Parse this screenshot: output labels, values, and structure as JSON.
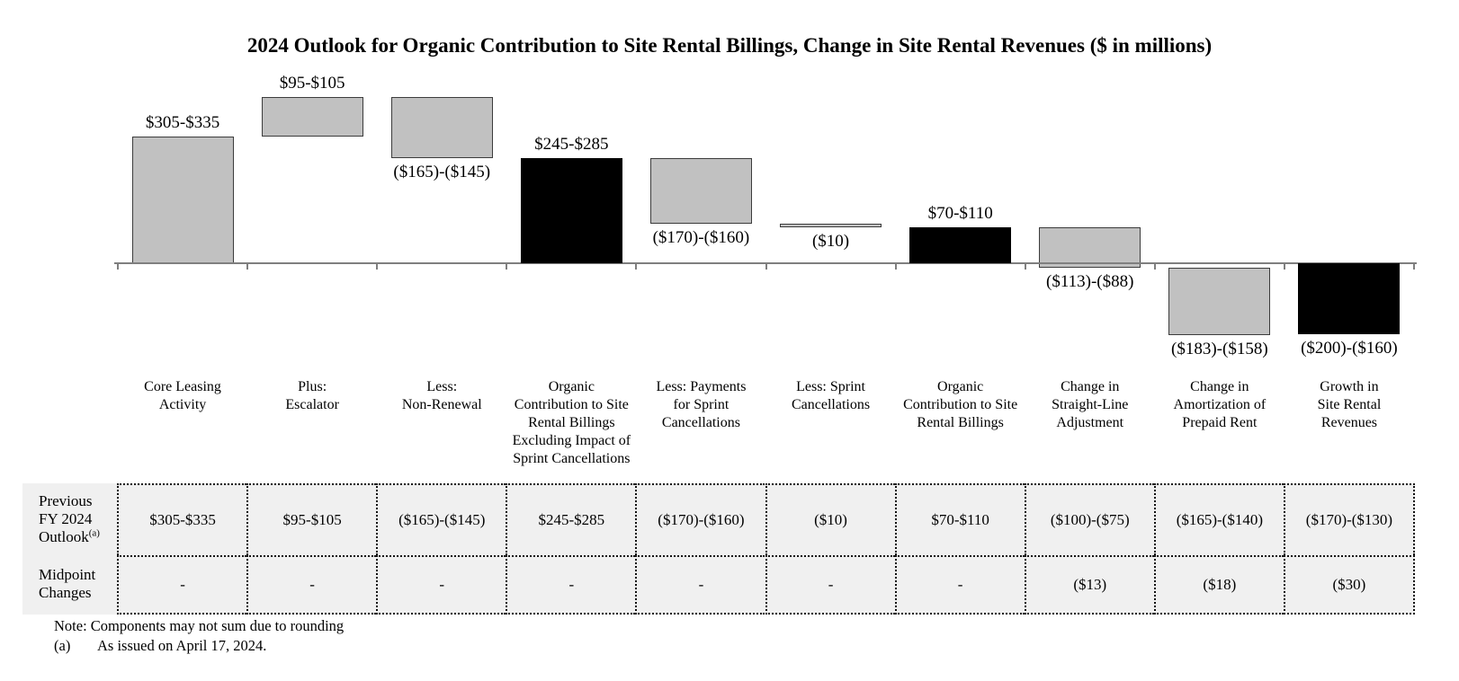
{
  "title": "2024 Outlook for Organic Contribution to Site Rental Billings, Change in Site Rental Revenues ($ in millions)",
  "chart_data": {
    "type": "bar",
    "subtype": "waterfall",
    "title": "2024 Outlook for Organic Contribution to Site Rental Billings, Change in Site Rental Revenues ($ in millions)",
    "unit": "$ in millions",
    "baseline": 0,
    "ylim": [
      -200,
      440
    ],
    "grid": false,
    "legend": "none",
    "categories": [
      "Core Leasing Activity",
      "Plus: Escalator",
      "Less: Non-Renewal",
      "Organic Contribution to Site Rental Billings Excluding Impact of Sprint Cancellations",
      "Less: Payments for Sprint Cancellations",
      "Less: Sprint Cancellations",
      "Organic Contribution to Site Rental Billings",
      "Change in Straight-Line Adjustment",
      "Change in Amortization of Prepaid Rent",
      "Growth in Site Rental Revenues"
    ],
    "bars": [
      {
        "label_lines": [
          "Core Leasing",
          "Activity"
        ],
        "value_label": "$305-$335",
        "range_low": 305,
        "range_high": 335,
        "start": 0,
        "end": 320,
        "color": "gray",
        "label_position": "above"
      },
      {
        "label_lines": [
          "Plus:",
          "Escalator"
        ],
        "value_label": "$95-$105",
        "range_low": 95,
        "range_high": 105,
        "start": 320,
        "end": 420,
        "color": "gray",
        "label_position": "above"
      },
      {
        "label_lines": [
          "Less:",
          "Non-Renewal"
        ],
        "value_label": "($165)-($145)",
        "range_low": -165,
        "range_high": -145,
        "start": 420,
        "end": 265,
        "color": "gray",
        "label_position": "below"
      },
      {
        "label_lines": [
          "Organic",
          "Contribution to Site",
          "Rental Billings",
          "Excluding Impact of",
          "Sprint Cancellations"
        ],
        "value_label": "$245-$285",
        "range_low": 245,
        "range_high": 285,
        "start": 0,
        "end": 265,
        "color": "black",
        "label_position": "above"
      },
      {
        "label_lines": [
          "Less: Payments",
          "for Sprint",
          "Cancellations"
        ],
        "value_label": "($170)-($160)",
        "range_low": -170,
        "range_high": -160,
        "start": 265,
        "end": 100,
        "color": "gray",
        "label_position": "below"
      },
      {
        "label_lines": [
          "Less: Sprint",
          "Cancellations"
        ],
        "value_label": "($10)",
        "range_low": -10,
        "range_high": -10,
        "start": 100,
        "end": 90,
        "color": "gray",
        "label_position": "below"
      },
      {
        "label_lines": [
          "Organic",
          "Contribution to Site",
          "Rental Billings"
        ],
        "value_label": "$70-$110",
        "range_low": 70,
        "range_high": 110,
        "start": 0,
        "end": 90,
        "color": "black",
        "label_position": "above"
      },
      {
        "label_lines": [
          "Change in",
          "Straight-Line",
          "Adjustment"
        ],
        "value_label": "($113)-($88)",
        "range_low": -113,
        "range_high": -88,
        "start": 90,
        "end": -10.5,
        "color": "gray",
        "label_position": "below"
      },
      {
        "label_lines": [
          "Change in",
          "Amortization of",
          "Prepaid Rent"
        ],
        "value_label": "($183)-($158)",
        "range_low": -183,
        "range_high": -158,
        "start": -10.5,
        "end": -181,
        "color": "gray",
        "label_position": "below"
      },
      {
        "label_lines": [
          "Growth in",
          "Site Rental",
          "Revenues"
        ],
        "value_label": "($200)-($160)",
        "range_low": -200,
        "range_high": -160,
        "start": 0,
        "end": -180,
        "color": "black",
        "label_position": "below"
      }
    ]
  },
  "table": {
    "row_headers": [
      {
        "lines": [
          "Previous",
          "FY 2024",
          "Outlook"
        ],
        "sup": "(a)"
      },
      {
        "lines": [
          "Midpoint",
          "Changes"
        ],
        "sup": ""
      }
    ],
    "rows": [
      [
        "$305-$335",
        "$95-$105",
        "($165)-($145)",
        "$245-$285",
        "($170)-($160)",
        "($10)",
        "$70-$110",
        "($100)-($75)",
        "($165)-($140)",
        "($170)-($130)"
      ],
      [
        "-",
        "-",
        "-",
        "-",
        "-",
        "-",
        "-",
        "($13)",
        "($18)",
        "($30)"
      ]
    ]
  },
  "notes": {
    "note": "Note: Components may not sum due to rounding",
    "footnote_marker": "(a)",
    "footnote_text": "As issued on April 17, 2024."
  },
  "colors": {
    "bar_gray": "#c1c1c1",
    "bar_black": "#000000",
    "bar_border": "#3c3c3c",
    "axis": "#7f7f7f",
    "table_bg": "#f0f0f0",
    "text": "#000000"
  }
}
